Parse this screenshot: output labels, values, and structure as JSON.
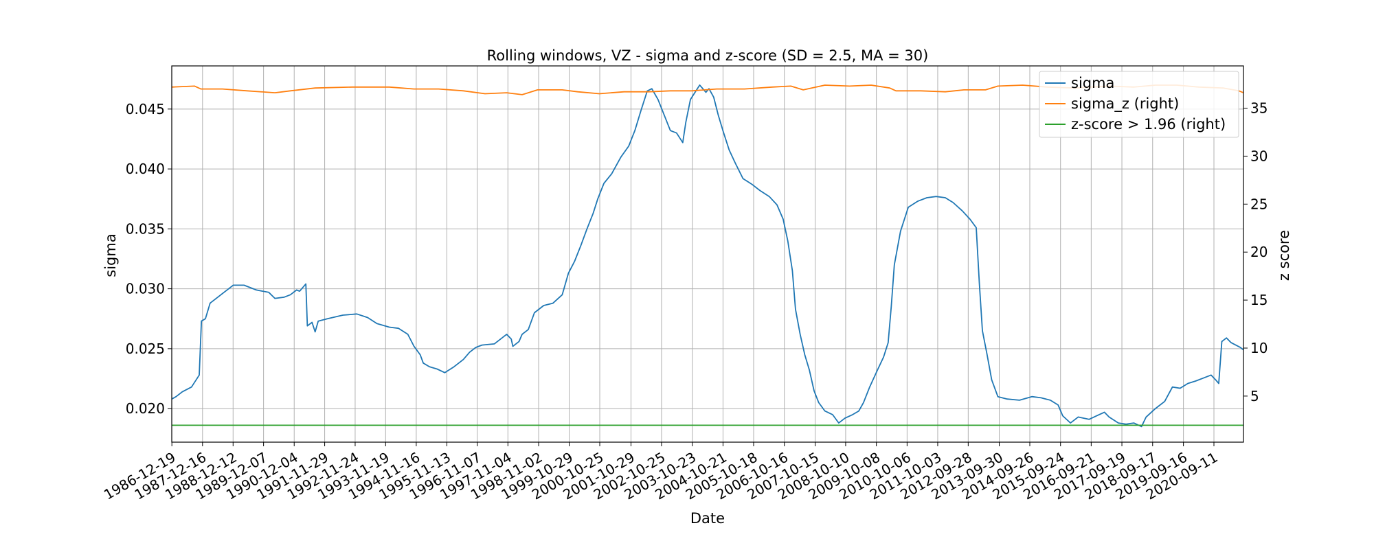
{
  "chart_data": {
    "type": "line",
    "title": "Rolling windows, VZ - sigma and z-score (SD = 2.5, MA = 30)",
    "xlabel": "Date",
    "ylabel_left": "sigma",
    "ylabel_right": "z score",
    "x_tick_labels": [
      "1986-12-19",
      "1987-12-16",
      "1988-12-12",
      "1989-12-07",
      "1990-12-04",
      "1991-11-29",
      "1992-11-24",
      "1993-11-19",
      "1994-11-16",
      "1995-11-13",
      "1996-11-07",
      "1997-11-04",
      "1998-11-02",
      "1999-10-29",
      "2000-10-25",
      "2001-10-29",
      "2002-10-25",
      "2003-10-23",
      "2004-10-21",
      "2005-10-18",
      "2006-10-16",
      "2007-10-15",
      "2008-10-10",
      "2009-10-08",
      "2010-10-06",
      "2011-10-03",
      "2012-09-28",
      "2013-09-30",
      "2014-09-26",
      "2015-09-24",
      "2016-09-21",
      "2017-09-19",
      "2018-09-17",
      "2019-09-16",
      "2020-09-11"
    ],
    "y_left_ticks": [
      "0.020",
      "0.025",
      "0.030",
      "0.035",
      "0.040",
      "0.045"
    ],
    "y_right_ticks": [
      "5",
      "10",
      "15",
      "20",
      "25",
      "30",
      "35"
    ],
    "ylim_left": [
      0.0172,
      0.0486
    ],
    "ylim_right": [
      0.2,
      39.4
    ],
    "grid": true,
    "legend_position": "top-right",
    "series": [
      {
        "name": "sigma",
        "axis": "left",
        "color": "#1f77b4",
        "points": [
          [
            1986.96,
            0.0208
          ],
          [
            1987.1,
            0.021
          ],
          [
            1987.3,
            0.0214
          ],
          [
            1987.6,
            0.0218
          ],
          [
            1987.85,
            0.0228
          ],
          [
            1987.92,
            0.0273
          ],
          [
            1988.05,
            0.0275
          ],
          [
            1988.2,
            0.0288
          ],
          [
            1988.6,
            0.0296
          ],
          [
            1988.95,
            0.0303
          ],
          [
            1989.3,
            0.0303
          ],
          [
            1989.7,
            0.0299
          ],
          [
            1990.1,
            0.0297
          ],
          [
            1990.3,
            0.0292
          ],
          [
            1990.6,
            0.0293
          ],
          [
            1990.8,
            0.0295
          ],
          [
            1991.0,
            0.0299
          ],
          [
            1991.1,
            0.0298
          ],
          [
            1991.3,
            0.0304
          ],
          [
            1991.35,
            0.0269
          ],
          [
            1991.5,
            0.0272
          ],
          [
            1991.6,
            0.0264
          ],
          [
            1991.7,
            0.0273
          ],
          [
            1992.0,
            0.0275
          ],
          [
            1992.5,
            0.0278
          ],
          [
            1992.95,
            0.0279
          ],
          [
            1993.3,
            0.0276
          ],
          [
            1993.6,
            0.0271
          ],
          [
            1994.0,
            0.0268
          ],
          [
            1994.3,
            0.0267
          ],
          [
            1994.6,
            0.0262
          ],
          [
            1994.8,
            0.0252
          ],
          [
            1995.0,
            0.0245
          ],
          [
            1995.1,
            0.0238
          ],
          [
            1995.3,
            0.0235
          ],
          [
            1995.55,
            0.0233
          ],
          [
            1995.8,
            0.023
          ],
          [
            1996.1,
            0.0235
          ],
          [
            1996.4,
            0.0241
          ],
          [
            1996.6,
            0.0247
          ],
          [
            1996.8,
            0.0251
          ],
          [
            1997.0,
            0.0253
          ],
          [
            1997.4,
            0.0254
          ],
          [
            1997.8,
            0.0262
          ],
          [
            1997.95,
            0.0258
          ],
          [
            1998.0,
            0.0252
          ],
          [
            1998.2,
            0.0256
          ],
          [
            1998.3,
            0.0262
          ],
          [
            1998.5,
            0.0266
          ],
          [
            1998.7,
            0.028
          ],
          [
            1999.0,
            0.0286
          ],
          [
            1999.3,
            0.0288
          ],
          [
            1999.6,
            0.0295
          ],
          [
            1999.8,
            0.0313
          ],
          [
            2000.0,
            0.0323
          ],
          [
            2000.2,
            0.0336
          ],
          [
            2000.4,
            0.035
          ],
          [
            2000.6,
            0.0363
          ],
          [
            2000.75,
            0.0375
          ],
          [
            2000.95,
            0.0388
          ],
          [
            2001.2,
            0.0396
          ],
          [
            2001.5,
            0.041
          ],
          [
            2001.75,
            0.0419
          ],
          [
            2001.95,
            0.0432
          ],
          [
            2002.15,
            0.0449
          ],
          [
            2002.35,
            0.0465
          ],
          [
            2002.5,
            0.0467
          ],
          [
            2002.7,
            0.0458
          ],
          [
            2002.9,
            0.0445
          ],
          [
            2003.1,
            0.0432
          ],
          [
            2003.3,
            0.043
          ],
          [
            2003.5,
            0.0422
          ],
          [
            2003.6,
            0.0439
          ],
          [
            2003.75,
            0.0458
          ],
          [
            2003.95,
            0.0466
          ],
          [
            2004.05,
            0.047
          ],
          [
            2004.25,
            0.0464
          ],
          [
            2004.35,
            0.0467
          ],
          [
            2004.5,
            0.046
          ],
          [
            2004.65,
            0.0445
          ],
          [
            2004.8,
            0.0432
          ],
          [
            2005.0,
            0.0416
          ],
          [
            2005.2,
            0.0405
          ],
          [
            2005.45,
            0.0392
          ],
          [
            2005.75,
            0.0387
          ],
          [
            2006.0,
            0.0382
          ],
          [
            2006.3,
            0.0377
          ],
          [
            2006.55,
            0.037
          ],
          [
            2006.75,
            0.0358
          ],
          [
            2006.9,
            0.034
          ],
          [
            2007.05,
            0.0315
          ],
          [
            2007.15,
            0.0283
          ],
          [
            2007.3,
            0.0262
          ],
          [
            2007.45,
            0.0245
          ],
          [
            2007.6,
            0.0232
          ],
          [
            2007.75,
            0.0215
          ],
          [
            2007.9,
            0.0205
          ],
          [
            2008.1,
            0.0198
          ],
          [
            2008.35,
            0.0195
          ],
          [
            2008.55,
            0.0188
          ],
          [
            2008.75,
            0.0192
          ],
          [
            2009.0,
            0.0195
          ],
          [
            2009.2,
            0.0198
          ],
          [
            2009.35,
            0.0205
          ],
          [
            2009.55,
            0.0218
          ],
          [
            2009.8,
            0.0232
          ],
          [
            2010.0,
            0.0243
          ],
          [
            2010.15,
            0.0255
          ],
          [
            2010.25,
            0.0285
          ],
          [
            2010.35,
            0.032
          ],
          [
            2010.55,
            0.0348
          ],
          [
            2010.8,
            0.0368
          ],
          [
            2011.1,
            0.0373
          ],
          [
            2011.4,
            0.0376
          ],
          [
            2011.7,
            0.0377
          ],
          [
            2012.0,
            0.0376
          ],
          [
            2012.25,
            0.0372
          ],
          [
            2012.55,
            0.0365
          ],
          [
            2012.8,
            0.0358
          ],
          [
            2013.0,
            0.0351
          ],
          [
            2013.1,
            0.0305
          ],
          [
            2013.2,
            0.0265
          ],
          [
            2013.35,
            0.0245
          ],
          [
            2013.5,
            0.0224
          ],
          [
            2013.7,
            0.021
          ],
          [
            2014.0,
            0.0208
          ],
          [
            2014.4,
            0.0207
          ],
          [
            2014.8,
            0.021
          ],
          [
            2015.1,
            0.0209
          ],
          [
            2015.4,
            0.0207
          ],
          [
            2015.65,
            0.0203
          ],
          [
            2015.8,
            0.0194
          ],
          [
            2016.05,
            0.0188
          ],
          [
            2016.3,
            0.0193
          ],
          [
            2016.65,
            0.0191
          ],
          [
            2016.9,
            0.0194
          ],
          [
            2017.15,
            0.0197
          ],
          [
            2017.3,
            0.0193
          ],
          [
            2017.6,
            0.0188
          ],
          [
            2017.85,
            0.0187
          ],
          [
            2018.1,
            0.0188
          ],
          [
            2018.35,
            0.0185
          ],
          [
            2018.5,
            0.0193
          ],
          [
            2018.8,
            0.02
          ],
          [
            2019.1,
            0.0206
          ],
          [
            2019.35,
            0.0218
          ],
          [
            2019.6,
            0.0217
          ],
          [
            2019.85,
            0.0221
          ],
          [
            2020.1,
            0.0223
          ],
          [
            2020.4,
            0.0226
          ],
          [
            2020.6,
            0.0228
          ],
          [
            2020.75,
            0.0224
          ],
          [
            2020.85,
            0.0221
          ],
          [
            2020.95,
            0.0256
          ],
          [
            2021.1,
            0.0259
          ],
          [
            2021.25,
            0.0255
          ],
          [
            2021.55,
            0.0251
          ],
          [
            2021.65,
            0.0249
          ]
        ]
      },
      {
        "name": "sigma_z (right)",
        "axis": "right",
        "color": "#ff7f0e",
        "points": [
          [
            1986.96,
            37.2
          ],
          [
            1987.7,
            37.3
          ],
          [
            1987.9,
            37.0
          ],
          [
            1988.6,
            37.0
          ],
          [
            1989.4,
            36.8
          ],
          [
            1990.3,
            36.6
          ],
          [
            1990.8,
            36.8
          ],
          [
            1991.6,
            37.1
          ],
          [
            1992.8,
            37.2
          ],
          [
            1994.0,
            37.2
          ],
          [
            1994.8,
            37.0
          ],
          [
            1995.6,
            37.0
          ],
          [
            1996.4,
            36.8
          ],
          [
            1997.1,
            36.5
          ],
          [
            1997.8,
            36.6
          ],
          [
            1998.3,
            36.4
          ],
          [
            1998.8,
            36.9
          ],
          [
            1999.6,
            36.9
          ],
          [
            2000.1,
            36.7
          ],
          [
            2000.8,
            36.5
          ],
          [
            2001.6,
            36.7
          ],
          [
            2002.4,
            36.7
          ],
          [
            2003.1,
            36.8
          ],
          [
            2003.8,
            36.8
          ],
          [
            2004.6,
            37.0
          ],
          [
            2005.5,
            37.0
          ],
          [
            2006.4,
            37.2
          ],
          [
            2007.0,
            37.3
          ],
          [
            2007.4,
            36.9
          ],
          [
            2008.1,
            37.4
          ],
          [
            2008.9,
            37.3
          ],
          [
            2009.6,
            37.4
          ],
          [
            2010.2,
            37.1
          ],
          [
            2010.4,
            36.8
          ],
          [
            2011.2,
            36.8
          ],
          [
            2012.0,
            36.7
          ],
          [
            2012.6,
            36.9
          ],
          [
            2013.3,
            36.9
          ],
          [
            2013.7,
            37.3
          ],
          [
            2014.5,
            37.4
          ],
          [
            2015.3,
            37.2
          ],
          [
            2016.2,
            37.1
          ],
          [
            2017.3,
            37.3
          ],
          [
            2018.1,
            37.2
          ],
          [
            2018.8,
            37.4
          ],
          [
            2019.5,
            37.4
          ],
          [
            2020.2,
            37.2
          ],
          [
            2021.0,
            37.1
          ],
          [
            2021.5,
            36.8
          ],
          [
            2021.65,
            36.6
          ]
        ]
      },
      {
        "name": "z-score > 1.96 (right)",
        "axis": "right",
        "color": "#2ca02c",
        "points": [
          [
            1986.96,
            1.96
          ],
          [
            2021.65,
            1.96
          ]
        ]
      }
    ]
  }
}
